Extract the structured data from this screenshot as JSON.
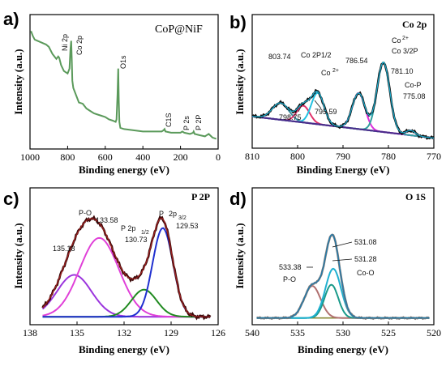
{
  "chart_data": [
    {
      "panel": "a)",
      "type": "line",
      "title": "CoP@NiF",
      "xlabel": "Binding energy (eV)",
      "ylabel": "Intensity (a.u.)",
      "xlim": [
        1000,
        0
      ],
      "xticks": [
        "1000",
        "800",
        "600",
        "400",
        "200",
        "0"
      ],
      "x_reversed": true,
      "series": [
        {
          "color": "#5b9a5b",
          "x": [
            995,
            985,
            975,
            960,
            945,
            930,
            915,
            900,
            880,
            860,
            850,
            845,
            835,
            820,
            800,
            790,
            785,
            781,
            778,
            775,
            770,
            760,
            740,
            720,
            700,
            680,
            660,
            640,
            620,
            600,
            580,
            560,
            545,
            540,
            535,
            531,
            528,
            525,
            520,
            500,
            450,
            400,
            350,
            300,
            290,
            285,
            280,
            250,
            200,
            190,
            180,
            150,
            133,
            130,
            125,
            100,
            70,
            50,
            30,
            10
          ],
          "y": [
            0.93,
            0.89,
            0.86,
            0.85,
            0.84,
            0.83,
            0.82,
            0.8,
            0.74,
            0.7,
            0.72,
            0.71,
            0.65,
            0.6,
            0.58,
            0.62,
            0.78,
            0.85,
            0.7,
            0.52,
            0.46,
            0.42,
            0.34,
            0.33,
            0.29,
            0.27,
            0.25,
            0.24,
            0.23,
            0.22,
            0.2,
            0.19,
            0.18,
            0.2,
            0.4,
            0.62,
            0.35,
            0.18,
            0.13,
            0.12,
            0.11,
            0.1,
            0.1,
            0.1,
            0.11,
            0.12,
            0.1,
            0.09,
            0.09,
            0.1,
            0.09,
            0.08,
            0.09,
            0.1,
            0.08,
            0.07,
            0.06,
            0.08,
            0.05,
            0.04
          ]
        }
      ],
      "annotations": [
        {
          "text": "Ni 2p",
          "x": 860
        },
        {
          "text": "Co 2p",
          "x": 781
        },
        {
          "text": "O1s",
          "x": 531
        },
        {
          "text": "C1S",
          "x": 285
        },
        {
          "text": "P 2s",
          "x": 190
        },
        {
          "text": "P 2P",
          "x": 133
        }
      ]
    },
    {
      "panel": "b)",
      "type": "line",
      "title": "Co 2p",
      "xlabel": "Binding Energy (eV)",
      "ylabel": "Intensity (a.u.)",
      "xlim": [
        810,
        770
      ],
      "xticks": [
        "810",
        "800",
        "790",
        "780",
        "770"
      ],
      "x_reversed": true,
      "fit": {
        "baseline": {
          "color": "#8b1a1a",
          "start": [
            810,
            0.22
          ],
          "end": [
            770,
            0.04
          ]
        },
        "raw_color": "#111111",
        "envelope_color": "#1aaed0",
        "peaks": [
          {
            "center": 803.74,
            "amp": 0.14,
            "width": 1.8,
            "color": "#3a8ea0"
          },
          {
            "center": 798.75,
            "amp": 0.14,
            "width": 1.4,
            "color": "#e0306a"
          },
          {
            "center": 795.59,
            "amp": 0.26,
            "width": 1.4,
            "color": "#22c0e0"
          },
          {
            "center": 786.54,
            "amp": 0.3,
            "width": 1.4,
            "color": "#dd30dd"
          },
          {
            "center": 781.1,
            "amp": 0.58,
            "width": 1.4,
            "color": "#30a0a0"
          },
          {
            "center": 775.08,
            "amp": 0.04,
            "width": 1.0,
            "color": "#4a2a8a"
          }
        ]
      },
      "annotations": [
        "803.74",
        "Co 2P1/2",
        "Co",
        "2+",
        "798.75",
        "795.59",
        "786.54",
        "Co 3/2P",
        "Co",
        "2+",
        "781.10",
        "Co-P",
        "775.08"
      ]
    },
    {
      "panel": "c)",
      "type": "line",
      "title": "P 2P",
      "xlabel": "Binding energy (eV)",
      "ylabel": "Intensity (a.u.)",
      "xlim": [
        138,
        126
      ],
      "xticks": [
        "138",
        "135",
        "132",
        "129",
        "126"
      ],
      "x_reversed": true,
      "fit": {
        "baseline": {
          "color": "#6a1a6a",
          "start": [
            137.2,
            0.02
          ],
          "end": [
            126.5,
            0.02
          ]
        },
        "raw_color": "#3a0a0a",
        "envelope_color": "#a02020",
        "peaks": [
          {
            "center": 135.18,
            "amp": 0.34,
            "width": 1.1,
            "color": "#9b35dd"
          },
          {
            "center": 133.58,
            "amp": 0.64,
            "width": 1.25,
            "color": "#e040d8"
          },
          {
            "center": 130.73,
            "amp": 0.22,
            "width": 0.8,
            "color": "#208a20"
          },
          {
            "center": 129.53,
            "amp": 0.72,
            "width": 0.65,
            "color": "#2030d0"
          }
        ]
      },
      "annotations": [
        "P-O",
        "133.58",
        "135.18",
        "P 2p",
        "1/2",
        "130.73",
        "P",
        "2p",
        "3/2",
        "129.53"
      ]
    },
    {
      "panel": "d)",
      "type": "line",
      "title": "O 1S",
      "xlabel": "Binding energy (eV)",
      "ylabel": "Intensity (a.u.)",
      "xlim": [
        540,
        520
      ],
      "xticks": [
        "540",
        "535",
        "530",
        "525",
        "520"
      ],
      "x_reversed": true,
      "fit": {
        "baseline": {
          "color": "#8a8a3a",
          "start": [
            539.5,
            0.01
          ],
          "end": [
            520.5,
            0.01
          ]
        },
        "raw_color": "#7a7a7a",
        "envelope_color": "#1a7ab0",
        "peaks": [
          {
            "center": 533.38,
            "amp": 0.26,
            "width": 0.9,
            "color": "#b07070"
          },
          {
            "center": 531.28,
            "amp": 0.27,
            "width": 0.75,
            "color": "#1a9a8a"
          },
          {
            "center": 531.08,
            "amp": 0.4,
            "width": 0.85,
            "color": "#20b0d0"
          }
        ]
      },
      "annotations": [
        "531.08",
        "533.38",
        "531.28",
        "P-O",
        "Co-O"
      ]
    }
  ]
}
